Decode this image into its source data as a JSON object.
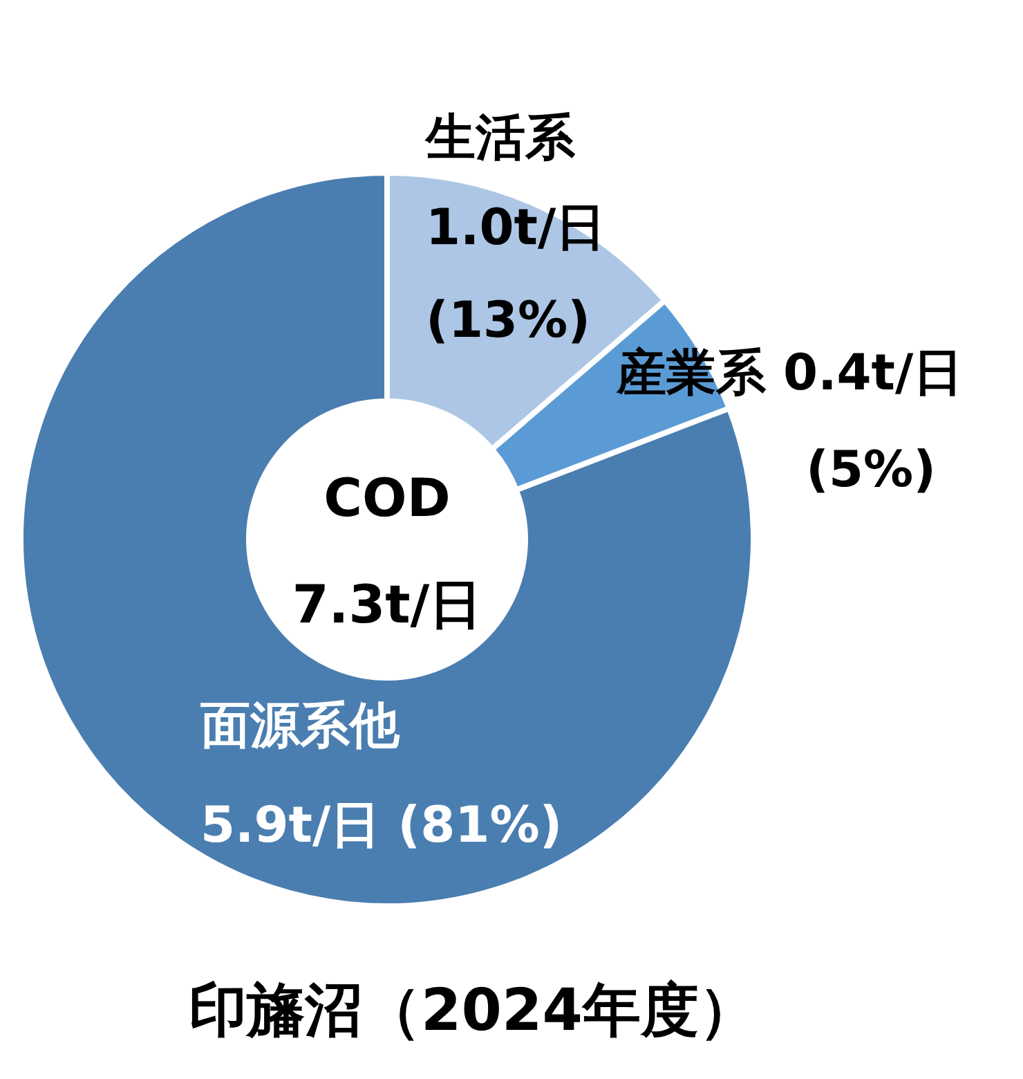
{
  "chart_data": {
    "type": "donut",
    "title": "印旛沼（2024年度）",
    "categories": [
      "生活系",
      "産業系",
      "面源系他"
    ],
    "values": [
      1.0,
      0.4,
      5.9
    ],
    "colors": [
      "#adc6e5",
      "#5b9bd5",
      "#4a7eb0"
    ],
    "value_labels": [
      "1.0t/日",
      "0.4t/日",
      "5.9t/日"
    ],
    "annotations": [
      "COD",
      "7.3t/日",
      "(13%)",
      "(5%)",
      "(81%)"
    ]
  }
}
